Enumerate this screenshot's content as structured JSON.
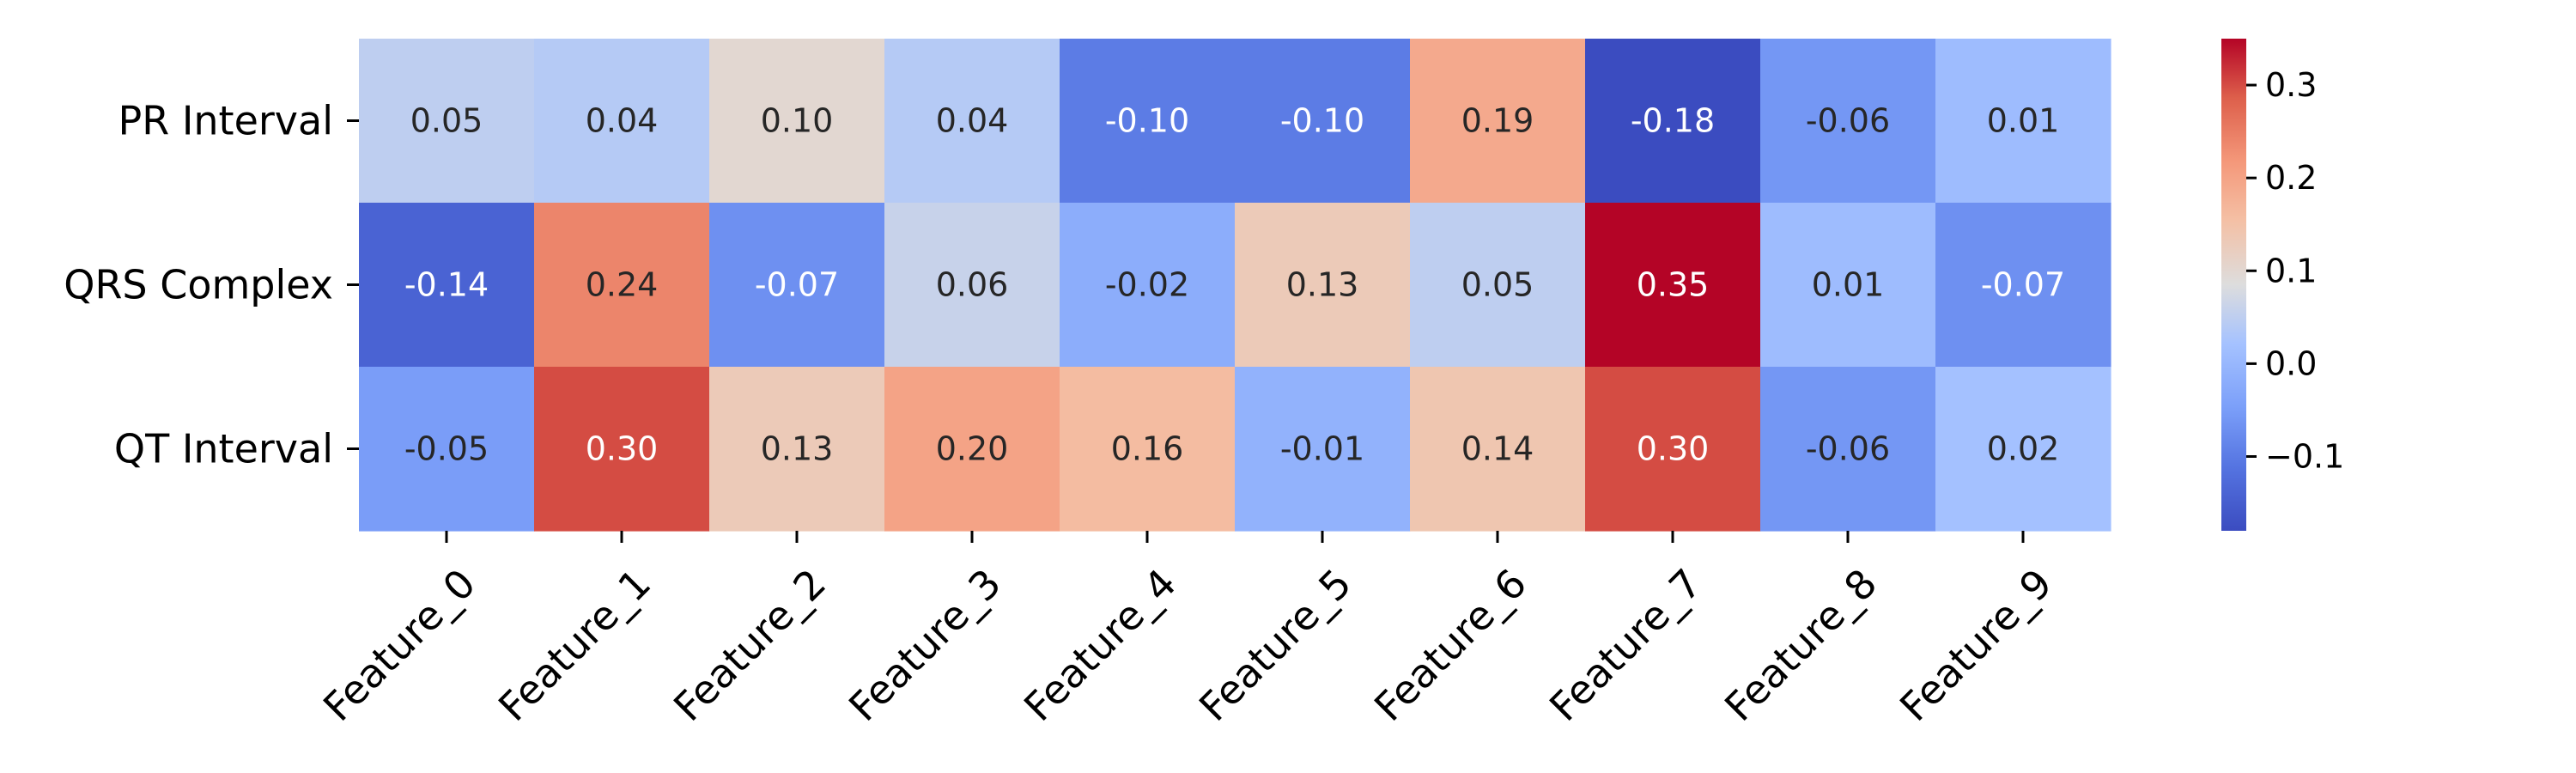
{
  "chart_data": {
    "type": "heatmap",
    "rows": [
      "PR Interval",
      "QRS Complex",
      "QT Interval"
    ],
    "columns": [
      "Feature_0",
      "Feature_1",
      "Feature_2",
      "Feature_3",
      "Feature_4",
      "Feature_5",
      "Feature_6",
      "Feature_7",
      "Feature_8",
      "Feature_9"
    ],
    "values": [
      [
        0.05,
        0.04,
        0.1,
        0.04,
        -0.1,
        -0.1,
        0.19,
        -0.18,
        -0.06,
        0.01
      ],
      [
        -0.14,
        0.24,
        -0.07,
        0.06,
        -0.02,
        0.13,
        0.05,
        0.35,
        0.01,
        -0.07
      ],
      [
        -0.05,
        0.3,
        0.13,
        0.2,
        0.16,
        -0.01,
        0.14,
        0.3,
        -0.06,
        0.02
      ]
    ],
    "cell_labels": [
      [
        "0.05",
        "0.04",
        "0.10",
        "0.04",
        "-0.10",
        "-0.10",
        "0.19",
        "-0.18",
        "-0.06",
        "0.01"
      ],
      [
        "-0.14",
        "0.24",
        "-0.07",
        "0.06",
        "-0.02",
        "0.13",
        "0.05",
        "0.35",
        "0.01",
        "-0.07"
      ],
      [
        "-0.05",
        "0.30",
        "0.13",
        "0.20",
        "0.16",
        "-0.01",
        "0.14",
        "0.30",
        "-0.06",
        "0.02"
      ]
    ],
    "colormap": "coolwarm",
    "vmin": -0.18,
    "vmax": 0.35,
    "colorbar": {
      "ticks": [
        -0.1,
        0.0,
        0.1,
        0.2,
        0.3
      ],
      "tick_labels": [
        "−0.1",
        "0.0",
        "0.1",
        "0.2",
        "0.3"
      ]
    },
    "title": "",
    "xlabel": "",
    "ylabel": ""
  }
}
